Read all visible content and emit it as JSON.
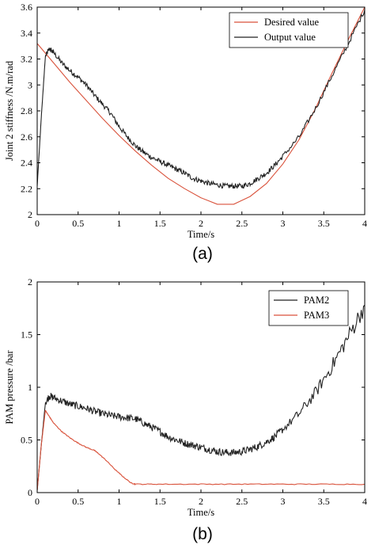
{
  "chart_data": [
    {
      "type": "line",
      "panel_label": "(a)",
      "xlabel": "Time/s",
      "ylabel": "Joint 2 stiffness /N.m/rad",
      "xlim": [
        0,
        4
      ],
      "ylim": [
        2,
        3.6
      ],
      "xticks": [
        0,
        0.5,
        1,
        1.5,
        2,
        2.5,
        3,
        3.5,
        4
      ],
      "yticks": [
        2,
        2.2,
        2.4,
        2.6,
        2.8,
        3,
        3.2,
        3.4,
        3.6
      ],
      "legend_position": "top-right",
      "series": [
        {
          "name": "Desired value",
          "color": "#d9523b",
          "x": [
            0,
            0.2,
            0.4,
            0.6,
            0.8,
            1.0,
            1.2,
            1.4,
            1.6,
            1.8,
            2.0,
            2.2,
            2.4,
            2.6,
            2.8,
            3.0,
            3.2,
            3.4,
            3.6,
            3.8,
            4.0
          ],
          "y": [
            3.32,
            3.17,
            3.02,
            2.88,
            2.74,
            2.61,
            2.49,
            2.38,
            2.28,
            2.2,
            2.13,
            2.08,
            2.08,
            2.14,
            2.24,
            2.39,
            2.58,
            2.82,
            3.09,
            3.35,
            3.6
          ]
        },
        {
          "name": "Output value",
          "color": "#222222",
          "noise": 0.02,
          "x": [
            0,
            0.05,
            0.1,
            0.15,
            0.2,
            0.3,
            0.4,
            0.5,
            0.6,
            0.7,
            0.8,
            0.9,
            1.0,
            1.1,
            1.2,
            1.3,
            1.4,
            1.5,
            1.6,
            1.7,
            1.8,
            1.9,
            2.0,
            2.1,
            2.2,
            2.3,
            2.4,
            2.5,
            2.6,
            2.7,
            2.8,
            2.9,
            3.0,
            3.2,
            3.4,
            3.6,
            3.8,
            4.0
          ],
          "y": [
            2.22,
            2.75,
            3.22,
            3.28,
            3.25,
            3.17,
            3.11,
            3.06,
            3.0,
            2.92,
            2.85,
            2.78,
            2.68,
            2.6,
            2.53,
            2.48,
            2.44,
            2.41,
            2.38,
            2.35,
            2.32,
            2.28,
            2.26,
            2.24,
            2.23,
            2.22,
            2.22,
            2.22,
            2.24,
            2.28,
            2.32,
            2.38,
            2.45,
            2.6,
            2.82,
            3.07,
            3.32,
            3.58
          ]
        }
      ]
    },
    {
      "type": "line",
      "panel_label": "(b)",
      "xlabel": "Time/s",
      "ylabel": "PAM pressure /bar",
      "xlim": [
        0,
        4
      ],
      "ylim": [
        0,
        2
      ],
      "xticks": [
        0,
        0.5,
        1,
        1.5,
        2,
        2.5,
        3,
        3.5,
        4
      ],
      "yticks": [
        0,
        0.5,
        1,
        1.5,
        2
      ],
      "legend_position": "top-right",
      "series": [
        {
          "name": "PAM2",
          "color": "#222222",
          "noise": 0.035,
          "x": [
            0,
            0.05,
            0.1,
            0.15,
            0.2,
            0.3,
            0.4,
            0.5,
            0.6,
            0.7,
            0.8,
            0.9,
            1.0,
            1.1,
            1.2,
            1.3,
            1.4,
            1.5,
            1.6,
            1.7,
            1.8,
            1.9,
            2.0,
            2.1,
            2.2,
            2.3,
            2.4,
            2.5,
            2.6,
            2.7,
            2.8,
            2.9,
            3.0,
            3.2,
            3.4,
            3.6,
            3.8,
            4.0
          ],
          "y": [
            0.02,
            0.45,
            0.85,
            0.92,
            0.9,
            0.87,
            0.84,
            0.82,
            0.8,
            0.77,
            0.75,
            0.73,
            0.72,
            0.71,
            0.7,
            0.66,
            0.62,
            0.58,
            0.53,
            0.5,
            0.47,
            0.45,
            0.43,
            0.41,
            0.39,
            0.38,
            0.38,
            0.39,
            0.41,
            0.44,
            0.48,
            0.53,
            0.6,
            0.75,
            0.95,
            1.2,
            1.48,
            1.78
          ]
        },
        {
          "name": "PAM3",
          "color": "#d9523b",
          "noise": 0.004,
          "x": [
            0,
            0.05,
            0.1,
            0.15,
            0.2,
            0.3,
            0.4,
            0.5,
            0.6,
            0.7,
            0.75,
            0.85,
            0.95,
            1.05,
            1.15,
            1.2,
            1.5,
            2.0,
            2.5,
            3.0,
            3.5,
            4.0
          ],
          "y": [
            0.02,
            0.45,
            0.78,
            0.72,
            0.66,
            0.58,
            0.52,
            0.47,
            0.43,
            0.4,
            0.37,
            0.3,
            0.22,
            0.15,
            0.09,
            0.08,
            0.08,
            0.08,
            0.08,
            0.08,
            0.08,
            0.08
          ]
        }
      ]
    }
  ]
}
